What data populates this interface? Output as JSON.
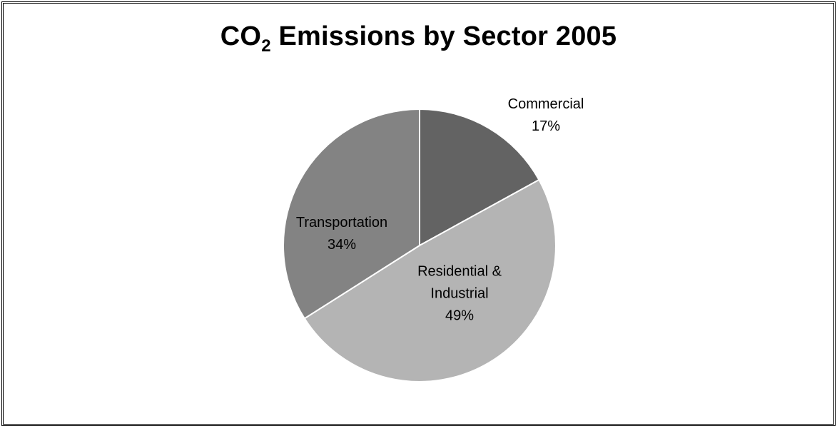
{
  "chart_data": {
    "type": "pie",
    "title_main": "CO",
    "title_sub": "2",
    "title_rest": " Emissions by Sector 2005",
    "slices": [
      {
        "label_lines": [
          "Commercial"
        ],
        "value": 17,
        "pct_label": "17%",
        "color": "#636363"
      },
      {
        "label_lines": [
          "Residential &",
          "Industrial"
        ],
        "value": 49,
        "pct_label": "49%",
        "color": "#b4b4b4"
      },
      {
        "label_lines": [
          "Transportation"
        ],
        "value": 34,
        "pct_label": "34%",
        "color": "#838383"
      }
    ],
    "legend": "none"
  }
}
